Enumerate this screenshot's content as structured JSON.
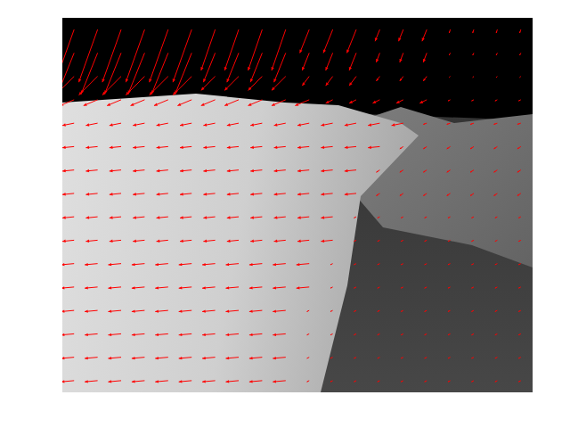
{
  "chart_data": {
    "type": "quiver",
    "color": "#ff0000",
    "grid": false,
    "tick_labels": false,
    "xlim": [
      0,
      40
    ],
    "ylim": [
      0,
      32
    ],
    "x": [
      1,
      3,
      5,
      7,
      9,
      11,
      13,
      15,
      17,
      19,
      21,
      23,
      25,
      27,
      29,
      31,
      33,
      35,
      37,
      39
    ],
    "y": [
      1,
      3,
      5,
      7,
      9,
      11,
      13,
      15,
      17,
      19,
      21,
      23,
      25,
      27,
      29,
      31
    ],
    "u": [
      [
        -1.6,
        -1.6,
        -1.6,
        -1.6,
        -1.6,
        -1.6,
        -1.2,
        -1.2,
        -1.2,
        -1.2,
        -0.8,
        -0.8,
        -0.8,
        -0.4,
        -0.4,
        -0.4,
        -0.1,
        -0.1,
        -0.1,
        -0.1
      ],
      [
        -1.4,
        -1.4,
        -1.4,
        -1.4,
        -1.4,
        -1.4,
        -1.0,
        -1.0,
        -1.0,
        -1.0,
        -0.6,
        -0.6,
        -0.6,
        -0.3,
        -0.3,
        -0.3,
        -0.1,
        -0.1,
        -0.1,
        -0.1
      ],
      [
        -1.6,
        -1.6,
        -1.6,
        -1.6,
        -1.6,
        -1.6,
        -1.2,
        -1.2,
        -1.2,
        -1.2,
        -0.6,
        -0.6,
        -0.6,
        -0.3,
        -0.3,
        -0.3,
        -0.1,
        -0.1,
        -0.1,
        -0.1
      ],
      [
        -1.2,
        -1.2,
        -1.2,
        -1.2,
        -1.2,
        -1.2,
        -1.2,
        -1.2,
        -1.2,
        -1.2,
        -1.2,
        -0.6,
        -0.6,
        -0.6,
        -0.6,
        -0.6,
        -0.2,
        -0.2,
        -0.2,
        -0.2
      ],
      [
        -1.0,
        -1.0,
        -1.0,
        -1.0,
        -1.0,
        -1.0,
        -1.0,
        -1.0,
        -1.0,
        -1.0,
        -1.0,
        -1.0,
        -1.0,
        -1.0,
        -1.0,
        -0.3,
        -0.3,
        -0.3,
        -0.3,
        -0.3
      ],
      [
        -1.0,
        -1.0,
        -1.0,
        -1.0,
        -1.0,
        -1.0,
        -1.0,
        -1.0,
        -1.0,
        -1.0,
        -1.0,
        -1.0,
        -1.0,
        -1.0,
        -0.3,
        -0.3,
        -0.3,
        -0.3,
        -0.3,
        -0.3
      ],
      [
        -1.0,
        -1.0,
        -1.0,
        -1.0,
        -1.0,
        -1.0,
        -1.0,
        -1.0,
        -1.0,
        -1.0,
        -1.0,
        -1.0,
        -1.0,
        -0.3,
        -0.3,
        -0.3,
        -0.3,
        -0.3,
        -0.3,
        -0.3
      ],
      [
        -1.0,
        -1.0,
        -1.0,
        -1.0,
        -1.0,
        -1.0,
        -1.0,
        -1.0,
        -1.0,
        -1.0,
        -1.0,
        -1.0,
        -1.0,
        -0.3,
        -0.3,
        -0.3,
        -0.3,
        -0.3,
        -0.3,
        -0.3
      ],
      [
        -1.0,
        -1.0,
        -1.0,
        -1.0,
        -1.0,
        -1.0,
        -1.0,
        -1.0,
        -1.0,
        -1.0,
        -1.0,
        -1.0,
        -0.2,
        -0.2,
        -0.2,
        -0.2,
        -0.2,
        -0.2,
        -0.2,
        -0.2
      ],
      [
        -1.0,
        -1.0,
        -1.0,
        -1.0,
        -1.0,
        -1.0,
        -1.0,
        -1.0,
        -1.0,
        -1.0,
        -1.0,
        -1.0,
        -0.2,
        -0.2,
        -0.2,
        -0.2,
        -0.2,
        -0.2,
        -0.2,
        -0.2
      ],
      [
        -1.1,
        -1.1,
        -1.1,
        -1.1,
        -1.1,
        -1.1,
        -1.1,
        -1.1,
        -1.1,
        -1.1,
        -1.1,
        -0.2,
        -0.2,
        -0.2,
        -0.2,
        -0.2,
        -0.2,
        -0.2,
        -0.2,
        -0.2
      ],
      [
        -1.1,
        -1.1,
        -1.1,
        -1.1,
        -1.1,
        -1.1,
        -1.1,
        -1.1,
        -1.1,
        -1.1,
        -1.1,
        -0.2,
        -0.2,
        -0.2,
        -0.2,
        -0.2,
        -0.2,
        -0.2,
        -0.2,
        -0.2
      ],
      [
        -1.1,
        -1.1,
        -1.1,
        -1.1,
        -1.1,
        -1.1,
        -1.1,
        -1.1,
        -1.1,
        -1.1,
        -0.2,
        -0.2,
        -0.2,
        -0.2,
        -0.2,
        -0.2,
        -0.2,
        -0.2,
        -0.2,
        -0.2
      ],
      [
        -1.1,
        -1.1,
        -1.1,
        -1.1,
        -1.1,
        -1.1,
        -1.1,
        -1.1,
        -1.1,
        -1.1,
        -0.2,
        -0.2,
        -0.2,
        -0.2,
        -0.2,
        -0.2,
        -0.2,
        -0.2,
        -0.2,
        -0.2
      ],
      [
        -1.1,
        -1.1,
        -1.1,
        -1.1,
        -1.1,
        -1.1,
        -1.1,
        -1.1,
        -1.1,
        -1.1,
        -0.2,
        -0.2,
        -0.2,
        -0.2,
        -0.2,
        -0.2,
        -0.2,
        -0.2,
        -0.2,
        -0.2
      ],
      [
        -1.1,
        -1.1,
        -1.1,
        -1.1,
        -1.1,
        -1.1,
        -1.1,
        -1.1,
        -1.1,
        -1.1,
        -0.2,
        -0.2,
        -0.2,
        -0.2,
        -0.2,
        -0.2,
        -0.2,
        -0.2,
        -0.2,
        -0.2
      ]
    ],
    "v": [
      [
        4.5,
        4.5,
        4.5,
        4.5,
        4.5,
        4.5,
        3.5,
        3.5,
        3.5,
        3.5,
        2,
        2,
        2,
        1,
        1,
        1,
        0.3,
        0.3,
        0.3,
        0.3
      ],
      [
        3.5,
        3.5,
        3.5,
        3.5,
        3.5,
        3.5,
        2.5,
        2.5,
        2.5,
        2.5,
        1.5,
        1.5,
        1.5,
        0.8,
        0.8,
        0.8,
        0.2,
        0.2,
        0.2,
        0.2
      ],
      [
        1.6,
        1.6,
        1.6,
        1.6,
        1.6,
        1.6,
        1.2,
        1.2,
        1.2,
        1.2,
        0.8,
        0.8,
        0.8,
        0.4,
        0.4,
        0.4,
        0.1,
        0.1,
        0.1,
        0.1
      ],
      [
        0.5,
        0.5,
        0.5,
        0.5,
        0.5,
        0.5,
        0.5,
        0.5,
        0.5,
        0.5,
        0.5,
        0.3,
        0.3,
        0.3,
        0.3,
        0.3,
        0.1,
        0.1,
        0.1,
        0.1
      ],
      [
        0.2,
        0.2,
        0.2,
        0.2,
        0.2,
        0.2,
        0.2,
        0.2,
        0.2,
        0.2,
        0.2,
        0.2,
        0.2,
        0.2,
        0.2,
        0.1,
        0.1,
        0.1,
        0.1,
        0.1
      ],
      [
        0.1,
        0.1,
        0.1,
        0.1,
        0.1,
        0.1,
        0.1,
        0.1,
        0.1,
        0.1,
        0.1,
        0.1,
        0.1,
        0.1,
        0.2,
        0.2,
        0.2,
        0.2,
        0.2,
        0.2
      ],
      [
        0.1,
        0.1,
        0.1,
        0.1,
        0.1,
        0.1,
        0.1,
        0.1,
        0.1,
        0.1,
        0.1,
        0.1,
        0.1,
        0.2,
        0.2,
        0.2,
        0.2,
        0.2,
        0.2,
        0.2
      ],
      [
        0.1,
        0.1,
        0.1,
        0.1,
        0.1,
        0.1,
        0.1,
        0.1,
        0.1,
        0.1,
        0.1,
        0.1,
        0.1,
        0.2,
        0.2,
        0.2,
        0.2,
        0.2,
        0.2,
        0.2
      ],
      [
        0.1,
        0.1,
        0.1,
        0.1,
        0.1,
        0.1,
        0.1,
        0.1,
        0.1,
        0.1,
        0.1,
        0.1,
        0.1,
        0.1,
        0.1,
        0.1,
        0.1,
        0.1,
        0.1,
        0.1
      ],
      [
        0.1,
        0.1,
        0.1,
        0.1,
        0.1,
        0.1,
        0.1,
        0.1,
        0.1,
        0.1,
        0.1,
        0.1,
        0.1,
        0.1,
        0.1,
        0.1,
        0.1,
        0.1,
        0.1,
        0.1
      ],
      [
        0.1,
        0.1,
        0.1,
        0.1,
        0.1,
        0.1,
        0.1,
        0.1,
        0.1,
        0.1,
        0.1,
        0.1,
        0.1,
        0.1,
        0.1,
        0.1,
        0.1,
        0.1,
        0.1,
        0.1
      ],
      [
        0.1,
        0.1,
        0.1,
        0.1,
        0.1,
        0.1,
        0.1,
        0.1,
        0.1,
        0.1,
        0.1,
        0.1,
        0.1,
        0.1,
        0.1,
        0.1,
        0.1,
        0.1,
        0.1,
        0.1
      ],
      [
        0.1,
        0.1,
        0.1,
        0.1,
        0.1,
        0.1,
        0.1,
        0.1,
        0.1,
        0.1,
        0.1,
        0.1,
        0.1,
        0.1,
        0.1,
        0.1,
        0.1,
        0.1,
        0.1,
        0.1
      ],
      [
        0.1,
        0.1,
        0.1,
        0.1,
        0.1,
        0.1,
        0.1,
        0.1,
        0.1,
        0.1,
        0.1,
        0.1,
        0.1,
        0.1,
        0.1,
        0.1,
        0.1,
        0.1,
        0.1,
        0.1
      ],
      [
        0.1,
        0.1,
        0.1,
        0.1,
        0.1,
        0.1,
        0.1,
        0.1,
        0.1,
        0.1,
        0.1,
        0.1,
        0.1,
        0.1,
        0.1,
        0.1,
        0.1,
        0.1,
        0.1,
        0.1
      ],
      [
        0.1,
        0.1,
        0.1,
        0.1,
        0.1,
        0.1,
        0.1,
        0.1,
        0.1,
        0.1,
        0.1,
        0.1,
        0.1,
        0.1,
        0.1,
        0.1,
        0.1,
        0.1,
        0.1,
        0.1
      ]
    ]
  }
}
